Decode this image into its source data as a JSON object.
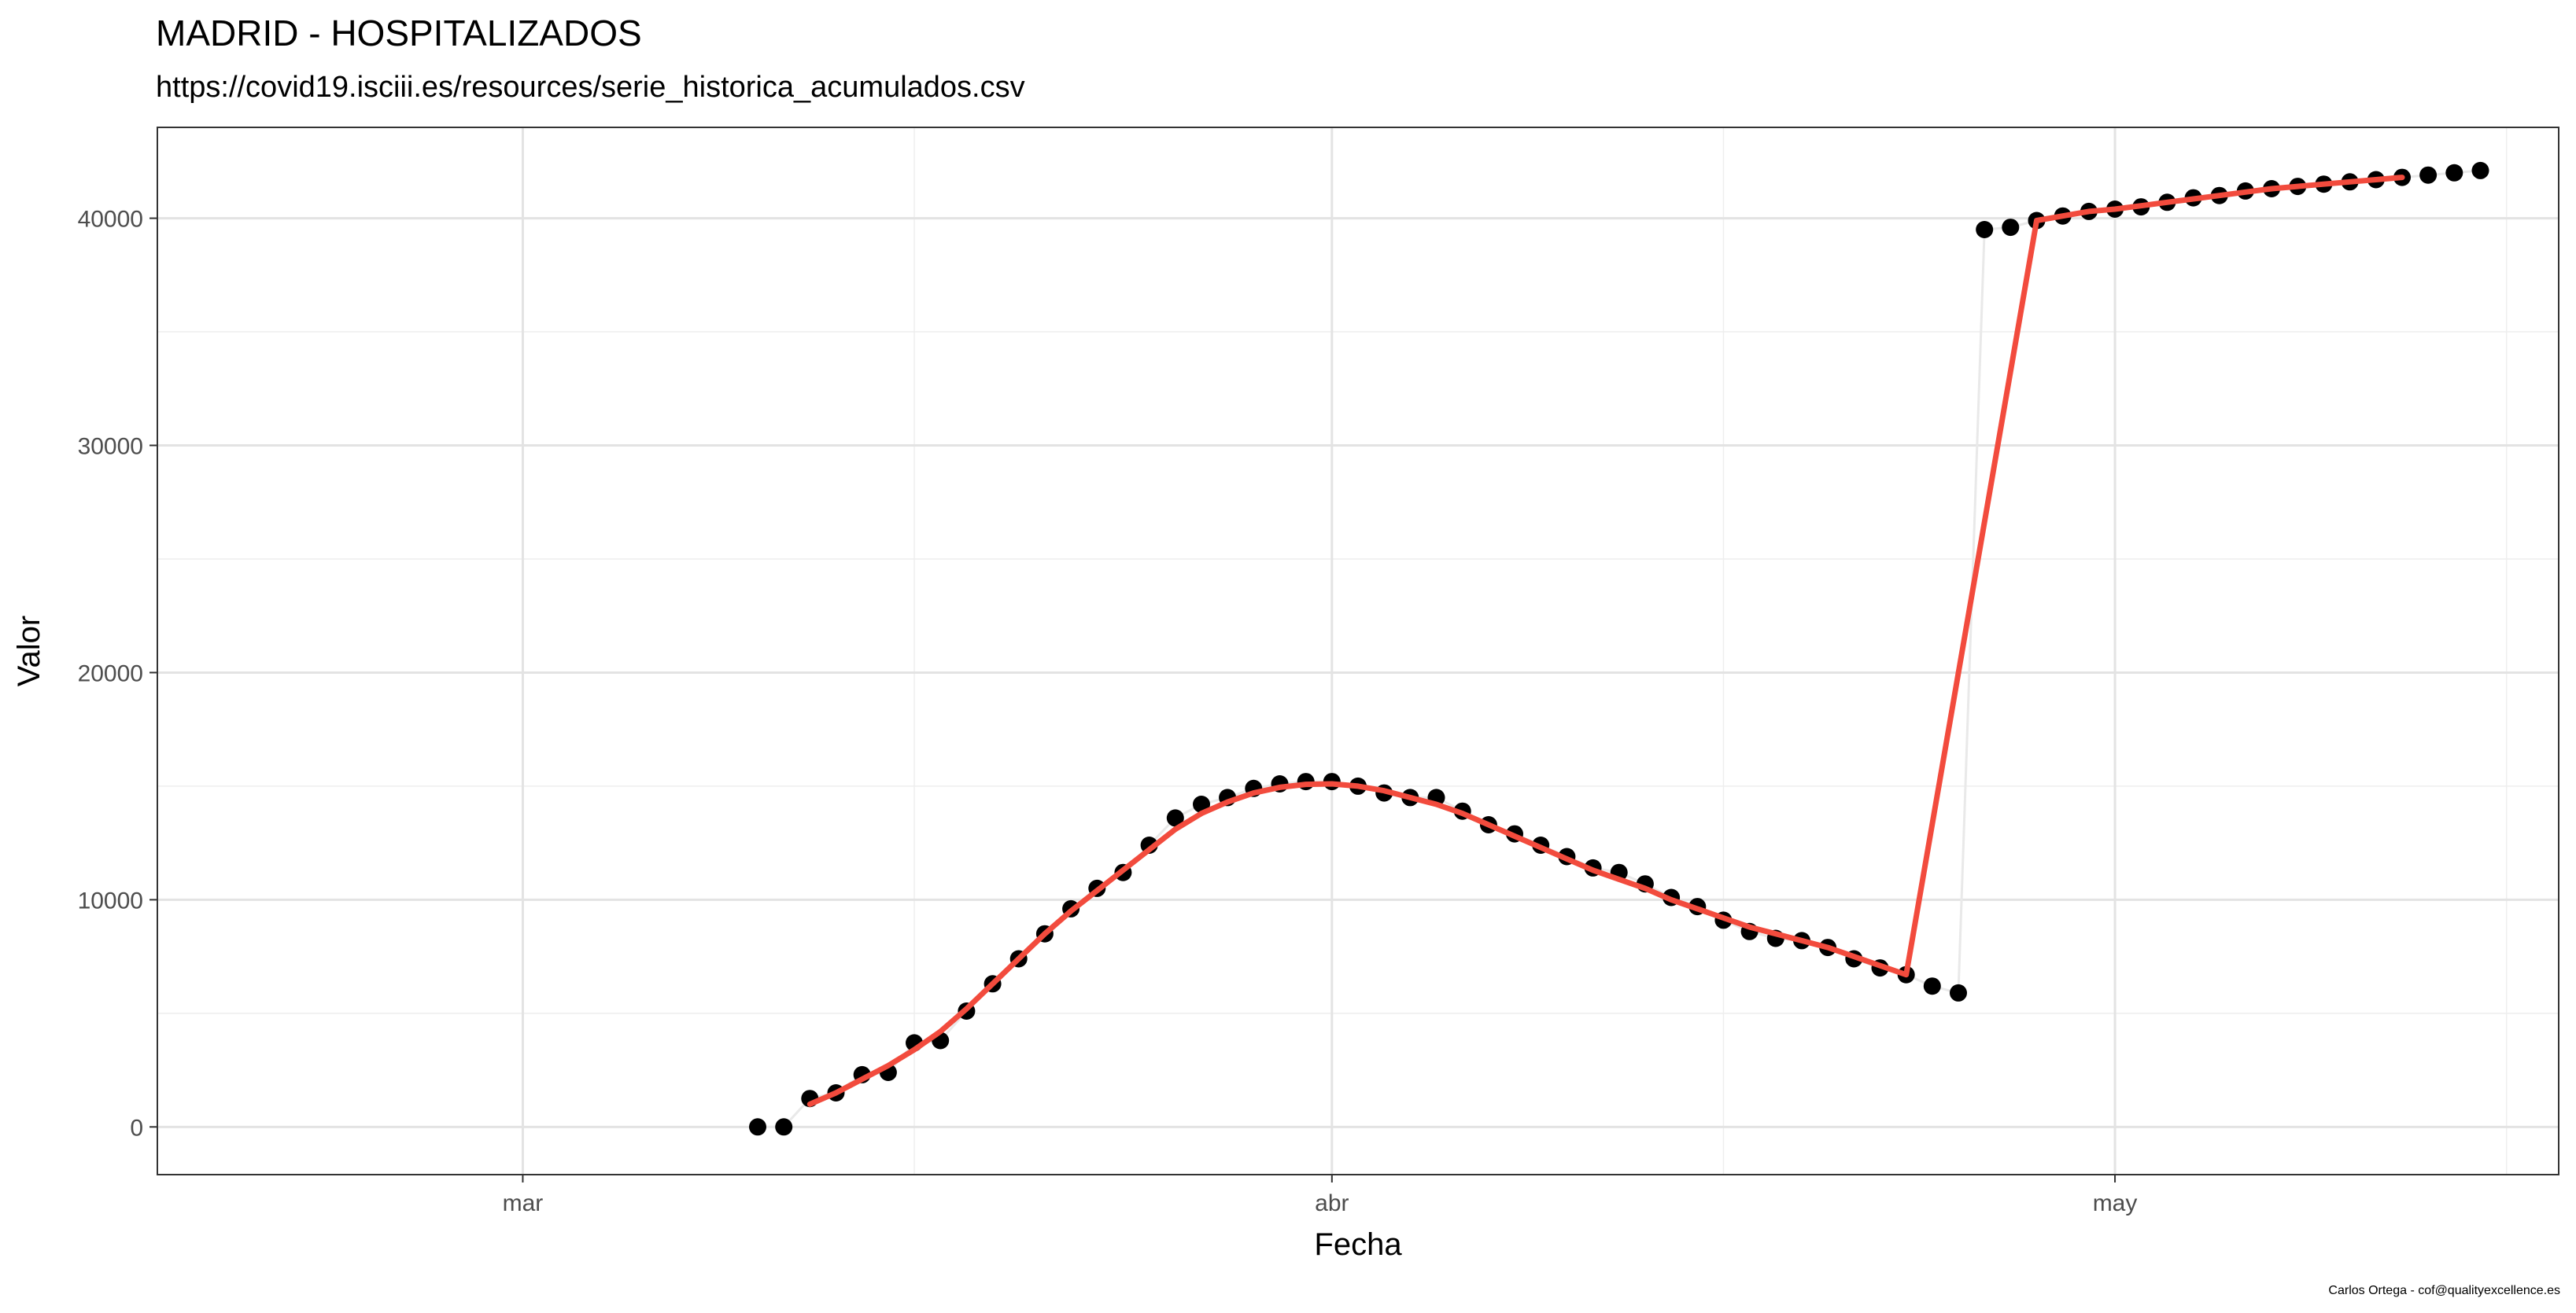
{
  "chart_data": {
    "type": "line",
    "title": "MADRID - HOSPITALIZADOS",
    "subtitle": "https://covid19.isciii.es/resources/serie_historica_acumulados.csv",
    "xlabel": "Fecha",
    "ylabel": "Valor",
    "caption": "Carlos Ortega - cof@qualityexcellence.es",
    "x_ticks": [
      {
        "label": "mar",
        "date": "2020-03-01"
      },
      {
        "label": "abr",
        "date": "2020-04-01"
      },
      {
        "label": "may",
        "date": "2020-05-01"
      }
    ],
    "x_minor_dates": [
      "2020-03-16",
      "2020-04-16",
      "2020-05-16"
    ],
    "xlim": [
      "2020-02-16",
      "2020-05-18"
    ],
    "y_ticks": [
      0,
      10000,
      20000,
      30000,
      40000
    ],
    "ylim": [
      -2100,
      44000
    ],
    "grid": true,
    "series": [
      {
        "type": "scatter",
        "color": "#000000",
        "points": [
          [
            "2020-03-10",
            0
          ],
          [
            "2020-03-11",
            0
          ],
          [
            "2020-03-12",
            1250
          ],
          [
            "2020-03-13",
            1500
          ],
          [
            "2020-03-14",
            2300
          ],
          [
            "2020-03-15",
            2400
          ],
          [
            "2020-03-16",
            3700
          ],
          [
            "2020-03-17",
            3800
          ],
          [
            "2020-03-18",
            5100
          ],
          [
            "2020-03-19",
            6300
          ],
          [
            "2020-03-20",
            7400
          ],
          [
            "2020-03-21",
            8500
          ],
          [
            "2020-03-22",
            9600
          ],
          [
            "2020-03-23",
            10500
          ],
          [
            "2020-03-24",
            11200
          ],
          [
            "2020-03-25",
            12400
          ],
          [
            "2020-03-26",
            13600
          ],
          [
            "2020-03-27",
            14200
          ],
          [
            "2020-03-28",
            14500
          ],
          [
            "2020-03-29",
            14900
          ],
          [
            "2020-03-30",
            15100
          ],
          [
            "2020-03-31",
            15200
          ],
          [
            "2020-04-01",
            15200
          ],
          [
            "2020-04-02",
            15000
          ],
          [
            "2020-04-03",
            14700
          ],
          [
            "2020-04-04",
            14500
          ],
          [
            "2020-04-05",
            14500
          ],
          [
            "2020-04-06",
            13900
          ],
          [
            "2020-04-07",
            13300
          ],
          [
            "2020-04-08",
            12900
          ],
          [
            "2020-04-09",
            12400
          ],
          [
            "2020-04-10",
            11900
          ],
          [
            "2020-04-11",
            11400
          ],
          [
            "2020-04-12",
            11200
          ],
          [
            "2020-04-13",
            10700
          ],
          [
            "2020-04-14",
            10100
          ],
          [
            "2020-04-15",
            9700
          ],
          [
            "2020-04-16",
            9100
          ],
          [
            "2020-04-17",
            8600
          ],
          [
            "2020-04-18",
            8300
          ],
          [
            "2020-04-19",
            8200
          ],
          [
            "2020-04-20",
            7900
          ],
          [
            "2020-04-21",
            7400
          ],
          [
            "2020-04-22",
            7000
          ],
          [
            "2020-04-23",
            6700
          ],
          [
            "2020-04-24",
            6200
          ],
          [
            "2020-04-25",
            5900
          ],
          [
            "2020-04-26",
            39500
          ],
          [
            "2020-04-27",
            39600
          ],
          [
            "2020-04-28",
            39900
          ],
          [
            "2020-04-29",
            40100
          ],
          [
            "2020-04-30",
            40300
          ],
          [
            "2020-05-01",
            40400
          ],
          [
            "2020-05-02",
            40500
          ],
          [
            "2020-05-03",
            40700
          ],
          [
            "2020-05-04",
            40900
          ],
          [
            "2020-05-05",
            41000
          ],
          [
            "2020-05-06",
            41200
          ],
          [
            "2020-05-07",
            41300
          ],
          [
            "2020-05-08",
            41400
          ],
          [
            "2020-05-09",
            41500
          ],
          [
            "2020-05-10",
            41600
          ],
          [
            "2020-05-11",
            41700
          ],
          [
            "2020-05-12",
            41800
          ],
          [
            "2020-05-13",
            41900
          ],
          [
            "2020-05-14",
            42000
          ],
          [
            "2020-05-15",
            42100
          ]
        ]
      },
      {
        "type": "line",
        "color": "#e9e9e9",
        "points": [
          [
            "2020-03-10",
            0
          ],
          [
            "2020-03-11",
            0
          ],
          [
            "2020-03-12",
            1250
          ],
          [
            "2020-03-13",
            1500
          ],
          [
            "2020-03-14",
            2300
          ],
          [
            "2020-03-15",
            2400
          ],
          [
            "2020-03-16",
            3700
          ],
          [
            "2020-03-17",
            3800
          ],
          [
            "2020-03-18",
            5100
          ],
          [
            "2020-03-19",
            6300
          ],
          [
            "2020-03-20",
            7400
          ],
          [
            "2020-03-21",
            8500
          ],
          [
            "2020-03-22",
            9600
          ],
          [
            "2020-03-23",
            10500
          ],
          [
            "2020-03-24",
            11200
          ],
          [
            "2020-03-25",
            12400
          ],
          [
            "2020-03-26",
            13600
          ],
          [
            "2020-03-27",
            14200
          ],
          [
            "2020-03-28",
            14500
          ],
          [
            "2020-03-29",
            14900
          ],
          [
            "2020-03-30",
            15100
          ],
          [
            "2020-03-31",
            15200
          ],
          [
            "2020-04-01",
            15200
          ],
          [
            "2020-04-02",
            15000
          ],
          [
            "2020-04-03",
            14700
          ],
          [
            "2020-04-04",
            14500
          ],
          [
            "2020-04-05",
            14500
          ],
          [
            "2020-04-06",
            13900
          ],
          [
            "2020-04-07",
            13300
          ],
          [
            "2020-04-08",
            12900
          ],
          [
            "2020-04-09",
            12400
          ],
          [
            "2020-04-10",
            11900
          ],
          [
            "2020-04-11",
            11400
          ],
          [
            "2020-04-12",
            11200
          ],
          [
            "2020-04-13",
            10700
          ],
          [
            "2020-04-14",
            10100
          ],
          [
            "2020-04-15",
            9700
          ],
          [
            "2020-04-16",
            9100
          ],
          [
            "2020-04-17",
            8600
          ],
          [
            "2020-04-18",
            8300
          ],
          [
            "2020-04-19",
            8200
          ],
          [
            "2020-04-20",
            7900
          ],
          [
            "2020-04-21",
            7400
          ],
          [
            "2020-04-22",
            7000
          ],
          [
            "2020-04-23",
            6700
          ],
          [
            "2020-04-24",
            6200
          ],
          [
            "2020-04-25",
            5900
          ],
          [
            "2020-04-26",
            39500
          ],
          [
            "2020-04-27",
            39600
          ],
          [
            "2020-04-28",
            39900
          ],
          [
            "2020-04-29",
            40100
          ],
          [
            "2020-04-30",
            40300
          ],
          [
            "2020-05-01",
            40400
          ],
          [
            "2020-05-02",
            40500
          ],
          [
            "2020-05-03",
            40700
          ],
          [
            "2020-05-04",
            40900
          ],
          [
            "2020-05-05",
            41000
          ],
          [
            "2020-05-06",
            41200
          ],
          [
            "2020-05-07",
            41300
          ],
          [
            "2020-05-08",
            41400
          ],
          [
            "2020-05-09",
            41500
          ],
          [
            "2020-05-10",
            41600
          ],
          [
            "2020-05-11",
            41700
          ],
          [
            "2020-05-12",
            41800
          ],
          [
            "2020-05-13",
            41900
          ],
          [
            "2020-05-14",
            42000
          ],
          [
            "2020-05-15",
            42100
          ]
        ]
      },
      {
        "type": "line",
        "color": "#f24b3d",
        "points": [
          [
            "2020-03-12",
            1000
          ],
          [
            "2020-03-13",
            1500
          ],
          [
            "2020-03-14",
            2100
          ],
          [
            "2020-03-15",
            2700
          ],
          [
            "2020-03-16",
            3400
          ],
          [
            "2020-03-17",
            4200
          ],
          [
            "2020-03-18",
            5200
          ],
          [
            "2020-03-19",
            6300
          ],
          [
            "2020-03-20",
            7400
          ],
          [
            "2020-03-21",
            8500
          ],
          [
            "2020-03-22",
            9500
          ],
          [
            "2020-03-23",
            10400
          ],
          [
            "2020-03-24",
            11300
          ],
          [
            "2020-03-25",
            12200
          ],
          [
            "2020-03-26",
            13100
          ],
          [
            "2020-03-27",
            13800
          ],
          [
            "2020-03-28",
            14300
          ],
          [
            "2020-03-29",
            14700
          ],
          [
            "2020-03-30",
            14950
          ],
          [
            "2020-03-31",
            15080
          ],
          [
            "2020-04-01",
            15100
          ],
          [
            "2020-04-02",
            15000
          ],
          [
            "2020-04-03",
            14800
          ],
          [
            "2020-04-04",
            14500
          ],
          [
            "2020-04-05",
            14200
          ],
          [
            "2020-04-06",
            13800
          ],
          [
            "2020-04-07",
            13300
          ],
          [
            "2020-04-08",
            12800
          ],
          [
            "2020-04-09",
            12300
          ],
          [
            "2020-04-10",
            11800
          ],
          [
            "2020-04-11",
            11300
          ],
          [
            "2020-04-12",
            10900
          ],
          [
            "2020-04-13",
            10500
          ],
          [
            "2020-04-14",
            10000
          ],
          [
            "2020-04-15",
            9600
          ],
          [
            "2020-04-16",
            9200
          ],
          [
            "2020-04-17",
            8800
          ],
          [
            "2020-04-18",
            8500
          ],
          [
            "2020-04-19",
            8200
          ],
          [
            "2020-04-20",
            7900
          ],
          [
            "2020-04-21",
            7500
          ],
          [
            "2020-04-22",
            7100
          ],
          [
            "2020-04-23",
            6700
          ],
          [
            "2020-04-28",
            39900
          ],
          [
            "2020-04-29",
            40100
          ],
          [
            "2020-04-30",
            40300
          ],
          [
            "2020-05-01",
            40400
          ],
          [
            "2020-05-02",
            40550
          ],
          [
            "2020-05-03",
            40700
          ],
          [
            "2020-05-04",
            40850
          ],
          [
            "2020-05-05",
            41000
          ],
          [
            "2020-05-06",
            41150
          ],
          [
            "2020-05-07",
            41300
          ],
          [
            "2020-05-08",
            41400
          ],
          [
            "2020-05-09",
            41500
          ],
          [
            "2020-05-10",
            41600
          ],
          [
            "2020-05-11",
            41700
          ],
          [
            "2020-05-12",
            41800
          ]
        ]
      }
    ]
  }
}
